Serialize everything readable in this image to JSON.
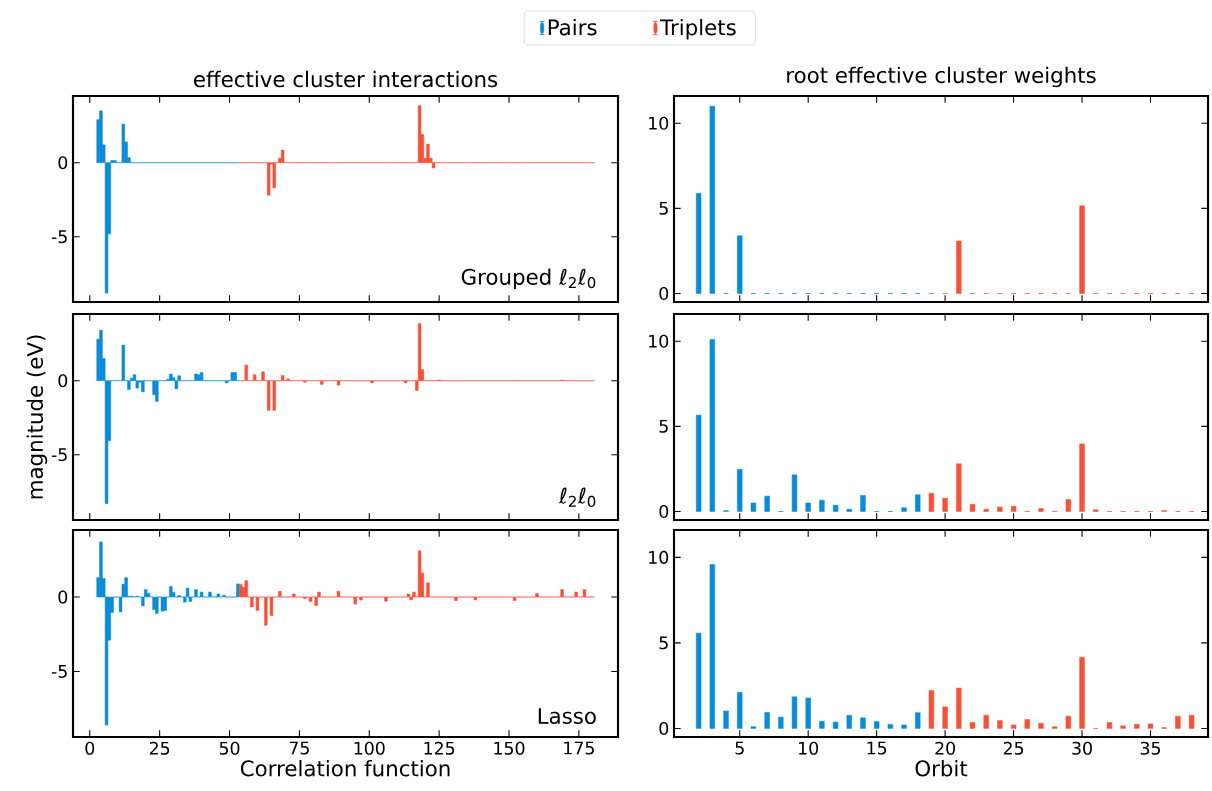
{
  "chart_data": [
    {
      "type": "bar",
      "title": "effective cluster interactions",
      "annotations": [
        "Grouped ℓ$_{2}$ℓ$_{0}$"
      ],
      "xlim": [
        -6,
        189
      ],
      "ylim": [
        -9.4,
        4.5
      ],
      "xticks": [
        0,
        25,
        50,
        75,
        100,
        125,
        150,
        175
      ],
      "yticks": [
        -5,
        0
      ],
      "tick_labels": "y",
      "legend": "top",
      "series": [
        {
          "name": "Pairs",
          "color": "#0a8bd6",
          "x": [
            3,
            4,
            5,
            6,
            7,
            8,
            9,
            10,
            11,
            12,
            13,
            14,
            15,
            16,
            17,
            18,
            19,
            20,
            21,
            22,
            23,
            24,
            25,
            26,
            27,
            28,
            29,
            30,
            31,
            32,
            33,
            34,
            35,
            36,
            37,
            38,
            39,
            40,
            41,
            42,
            43,
            44,
            45,
            46,
            47,
            48,
            49,
            50,
            51,
            52,
            53
          ],
          "values": [
            2.9,
            3.5,
            1.2,
            -8.8,
            -4.8,
            0.15,
            0.15,
            0,
            0,
            2.6,
            1.4,
            0.35,
            0,
            0,
            0,
            0,
            0,
            0,
            0,
            0,
            0,
            0,
            0,
            0,
            0,
            0,
            0,
            0,
            0,
            0,
            0,
            0,
            0,
            0,
            0,
            0,
            0,
            0,
            0,
            0,
            0,
            0,
            0,
            0,
            0,
            0,
            0,
            0,
            0,
            0,
            0
          ]
        },
        {
          "name": "Triplets",
          "color": "#f5523a",
          "x": [
            54,
            55,
            56,
            57,
            58,
            59,
            60,
            61,
            62,
            63,
            64,
            65,
            66,
            67,
            68,
            69,
            70,
            71,
            72,
            73,
            74,
            75,
            76,
            77,
            78,
            79,
            80,
            81,
            82,
            83,
            84,
            85,
            86,
            87,
            88,
            89,
            90,
            91,
            92,
            93,
            94,
            95,
            96,
            97,
            98,
            99,
            100,
            101,
            102,
            103,
            104,
            105,
            106,
            107,
            108,
            109,
            110,
            111,
            112,
            113,
            114,
            115,
            116,
            117,
            118,
            119,
            120,
            121,
            122,
            123,
            124,
            125,
            126,
            127,
            128,
            129,
            130,
            131,
            132,
            133,
            134,
            135,
            136,
            137,
            138,
            139,
            140,
            141,
            142,
            143,
            144,
            145,
            146,
            147,
            148,
            149,
            150,
            151,
            152,
            153,
            154,
            155,
            156,
            157,
            158,
            159,
            160,
            161,
            162,
            163,
            164,
            165,
            166,
            167,
            168,
            169,
            170,
            171,
            172,
            173,
            174,
            175,
            176,
            177,
            178,
            179,
            180
          ],
          "values": [
            0,
            0,
            0,
            0,
            0,
            0,
            0,
            0,
            0,
            0,
            -2.2,
            -0.1,
            -1.7,
            0,
            0.3,
            0.85,
            0,
            0,
            0,
            0,
            0,
            0,
            0,
            0,
            0,
            0,
            0,
            0,
            0,
            0,
            0,
            0,
            0,
            0,
            0,
            0,
            0,
            0,
            0,
            0,
            0,
            0,
            0,
            0,
            0,
            0,
            0,
            0,
            0,
            0,
            0,
            0,
            0,
            0,
            0,
            0,
            0,
            0,
            0,
            0,
            0,
            0,
            0,
            0,
            3.85,
            1.9,
            0.3,
            1.25,
            0.3,
            -0.35,
            0,
            0,
            0,
            0,
            0,
            0,
            0,
            0,
            0,
            0,
            0,
            0,
            0,
            0,
            0,
            0,
            0,
            0,
            0,
            0,
            0,
            0,
            0,
            0,
            0,
            0,
            0,
            0,
            0,
            0,
            0,
            0,
            0,
            0,
            0,
            0,
            0,
            0,
            0,
            0,
            0,
            0,
            0,
            0,
            0,
            0,
            0,
            0,
            0,
            0,
            0,
            0,
            0,
            0,
            0,
            0,
            0
          ]
        }
      ]
    },
    {
      "type": "bar",
      "title": "root effective cluster weights",
      "xlim": [
        0.2,
        39.2
      ],
      "ylim": [
        -0.5,
        11.6
      ],
      "xticks": [
        5,
        10,
        15,
        20,
        25,
        30,
        35
      ],
      "yticks": [
        0,
        5,
        10
      ],
      "tick_labels": "y",
      "series": [
        {
          "color": "#0a8bd6",
          "x": [
            2,
            3,
            4,
            5,
            6,
            7,
            8,
            9,
            10,
            11,
            12,
            13,
            14,
            15,
            16,
            17,
            18
          ],
          "values": [
            5.88,
            11.0,
            0,
            3.39,
            0,
            0,
            0,
            0,
            0,
            0,
            0,
            0,
            0,
            0,
            0,
            0,
            0
          ]
        },
        {
          "color": "#f5523a",
          "x": [
            19,
            20,
            21,
            22,
            23,
            24,
            25,
            26,
            27,
            28,
            29,
            30,
            31,
            32,
            33,
            34,
            35,
            36,
            37,
            38
          ],
          "values": [
            0,
            0,
            3.08,
            0,
            0,
            0,
            0,
            0,
            0,
            0,
            0,
            5.15,
            0,
            0,
            0,
            0,
            0,
            0,
            0,
            0
          ]
        }
      ]
    },
    {
      "type": "bar",
      "ylabel": "magnitude (eV)",
      "annotations": [
        "ℓ$_{2}$ℓ$_{0}$"
      ],
      "xlim": [
        -6,
        189
      ],
      "ylim": [
        -9.4,
        4.5
      ],
      "xticks": [
        0,
        25,
        50,
        75,
        100,
        125,
        150,
        175
      ],
      "yticks": [
        -5,
        0
      ],
      "tick_labels": "y",
      "series": [
        {
          "color": "#0a8bd6",
          "x": [
            3,
            4,
            5,
            6,
            7,
            8,
            9,
            10,
            11,
            12,
            13,
            14,
            15,
            16,
            17,
            18,
            19,
            20,
            21,
            22,
            23,
            24,
            25,
            26,
            27,
            28,
            29,
            30,
            31,
            32,
            33,
            34,
            35,
            36,
            37,
            38,
            39,
            40,
            41,
            42,
            43,
            44,
            45,
            46,
            47,
            48,
            49,
            50,
            51,
            52,
            53
          ],
          "values": [
            2.8,
            3.4,
            1.5,
            -8.3,
            -4.05,
            0,
            0,
            0,
            0,
            2.4,
            0,
            -0.6,
            0.17,
            0.4,
            -0.5,
            -0.1,
            -0.75,
            0,
            0,
            0,
            -0.95,
            -1.4,
            0,
            0,
            0,
            0.1,
            0.45,
            0.2,
            -0.55,
            0.33,
            0,
            0,
            0,
            0,
            0,
            0.45,
            0.4,
            0.55,
            0,
            0,
            0,
            0,
            0,
            0,
            0,
            0,
            -0.15,
            0,
            0.55,
            0.55,
            0
          ]
        },
        {
          "color": "#f5523a",
          "x": [
            54,
            55,
            56,
            57,
            58,
            59,
            60,
            61,
            62,
            63,
            64,
            65,
            66,
            67,
            68,
            69,
            70,
            71,
            72,
            73,
            74,
            75,
            76,
            77,
            78,
            79,
            80,
            81,
            82,
            83,
            84,
            85,
            86,
            87,
            88,
            89,
            90,
            91,
            92,
            93,
            94,
            95,
            96,
            97,
            98,
            99,
            100,
            101,
            102,
            103,
            104,
            105,
            106,
            107,
            108,
            109,
            110,
            111,
            112,
            113,
            114,
            115,
            116,
            117,
            118,
            119,
            120,
            121,
            122,
            123,
            124,
            125,
            126,
            127,
            128,
            129,
            130,
            131,
            132,
            133,
            134,
            135,
            136,
            137,
            138,
            139,
            140,
            141,
            142,
            143,
            144,
            145,
            146,
            147,
            148,
            149,
            150,
            151,
            152,
            153,
            154,
            155,
            156,
            157,
            158,
            159,
            160,
            161,
            162,
            163,
            164,
            165,
            166,
            167,
            168,
            169,
            170,
            171,
            172,
            173,
            174,
            175,
            176,
            177,
            178,
            179,
            180
          ],
          "values": [
            0,
            0,
            1.05,
            0,
            0,
            0.4,
            0,
            0,
            0.6,
            0,
            -2.0,
            0,
            -2.0,
            0,
            0,
            0.35,
            0,
            0.12,
            0,
            0,
            0,
            0,
            0,
            -0.1,
            0,
            0,
            0,
            0,
            0,
            -0.25,
            0,
            0,
            0,
            0,
            0,
            -0.3,
            0,
            0,
            0,
            0,
            0,
            0,
            0,
            0,
            0,
            0,
            0,
            -0.15,
            0,
            0,
            0,
            0,
            0,
            0,
            0,
            0,
            0,
            0,
            0,
            -0.15,
            0,
            0,
            0,
            -0.67,
            3.85,
            0.75,
            0,
            0,
            0,
            0,
            0,
            0.05,
            0,
            0,
            0,
            0,
            0,
            0,
            0,
            0,
            0,
            0,
            0,
            0,
            0,
            0,
            0,
            0,
            0,
            0,
            0,
            0,
            0,
            0,
            0,
            0,
            0,
            0,
            0,
            0,
            0,
            0,
            0,
            0,
            0,
            0,
            0,
            0,
            0,
            0,
            0,
            0,
            0,
            0,
            0,
            0.05,
            0,
            0,
            0,
            0,
            0,
            0,
            0,
            0,
            0,
            0,
            0
          ]
        }
      ]
    },
    {
      "type": "bar",
      "xlim": [
        0.2,
        39.2
      ],
      "ylim": [
        -0.5,
        11.6
      ],
      "xticks": [
        5,
        10,
        15,
        20,
        25,
        30,
        35
      ],
      "yticks": [
        0,
        5,
        10
      ],
      "tick_labels": "y",
      "series": [
        {
          "color": "#0a8bd6",
          "x": [
            2,
            3,
            4,
            5,
            6,
            7,
            8,
            9,
            10,
            11,
            12,
            13,
            14,
            15,
            16,
            17,
            18
          ],
          "values": [
            5.66,
            10.1,
            0.05,
            2.48,
            0.5,
            0.9,
            0,
            2.15,
            0.5,
            0.66,
            0.37,
            0.13,
            0.94,
            0,
            0,
            0.22,
            0.98
          ]
        },
        {
          "color": "#f5523a",
          "x": [
            19,
            20,
            21,
            22,
            23,
            24,
            25,
            26,
            27,
            28,
            29,
            30,
            31,
            32,
            33,
            34,
            35,
            36,
            37,
            38
          ],
          "values": [
            1.07,
            0.78,
            2.8,
            0.42,
            0.13,
            0.26,
            0.3,
            0,
            0.17,
            0,
            0.7,
            3.97,
            0.1,
            0,
            0,
            0,
            0,
            0.05,
            0,
            0
          ]
        }
      ]
    },
    {
      "type": "bar",
      "xlabel": "Correlation function",
      "annotations": [
        "Lasso"
      ],
      "xlim": [
        -6,
        189
      ],
      "ylim": [
        -9.4,
        4.5
      ],
      "xticks": [
        0,
        25,
        50,
        75,
        100,
        125,
        150,
        175
      ],
      "yticks": [
        -5,
        0
      ],
      "series": [
        {
          "color": "#0a8bd6",
          "x": [
            3,
            4,
            5,
            6,
            7,
            8,
            9,
            10,
            11,
            12,
            13,
            14,
            15,
            16,
            17,
            18,
            19,
            20,
            21,
            22,
            23,
            24,
            25,
            26,
            27,
            28,
            29,
            30,
            31,
            32,
            33,
            34,
            35,
            36,
            37,
            38,
            39,
            40,
            41,
            42,
            43,
            44,
            45,
            46,
            47,
            48,
            49,
            50,
            51,
            52,
            53
          ],
          "values": [
            1.3,
            3.7,
            1.24,
            -8.6,
            -2.9,
            -1.05,
            0,
            0,
            -1.0,
            0.86,
            1.3,
            0.05,
            0.05,
            0,
            0.05,
            0,
            -0.6,
            0.5,
            0.25,
            0,
            -0.85,
            -1.1,
            0,
            -0.95,
            -0.9,
            0,
            0.7,
            0.3,
            0,
            0.1,
            0,
            -0.35,
            0.6,
            -0.3,
            0,
            0.5,
            0,
            0.33,
            0,
            0,
            0.33,
            0,
            0,
            0.2,
            0,
            0.12,
            0,
            0,
            0,
            0,
            0.88
          ]
        },
        {
          "color": "#f5523a",
          "x": [
            54,
            55,
            56,
            57,
            58,
            59,
            60,
            61,
            62,
            63,
            64,
            65,
            66,
            67,
            68,
            69,
            70,
            71,
            72,
            73,
            74,
            75,
            76,
            77,
            78,
            79,
            80,
            81,
            82,
            83,
            84,
            85,
            86,
            87,
            88,
            89,
            90,
            91,
            92,
            93,
            94,
            95,
            96,
            97,
            98,
            99,
            100,
            101,
            102,
            103,
            104,
            105,
            106,
            107,
            108,
            109,
            110,
            111,
            112,
            113,
            114,
            115,
            116,
            117,
            118,
            119,
            120,
            121,
            122,
            123,
            124,
            125,
            126,
            127,
            128,
            129,
            130,
            131,
            132,
            133,
            134,
            135,
            136,
            137,
            138,
            139,
            140,
            141,
            142,
            143,
            144,
            145,
            146,
            147,
            148,
            149,
            150,
            151,
            152,
            153,
            154,
            155,
            156,
            157,
            158,
            159,
            160,
            161,
            162,
            163,
            164,
            165,
            166,
            167,
            168,
            169,
            170,
            171,
            172,
            173,
            174,
            175,
            176,
            177,
            178,
            179,
            180
          ],
          "values": [
            0.83,
            0.65,
            1.1,
            0,
            -0.67,
            0,
            -0.9,
            0,
            0,
            -1.9,
            0,
            -1.25,
            0,
            0,
            0.38,
            0,
            0,
            0,
            0,
            0.2,
            0,
            0,
            0,
            -0.1,
            0,
            -0.3,
            0,
            -0.57,
            0.33,
            0,
            0,
            0,
            0,
            0,
            0,
            0.38,
            0,
            0,
            0,
            0,
            0,
            -0.48,
            0,
            -0.2,
            0,
            0,
            0,
            0,
            0,
            0,
            0,
            0,
            -0.28,
            0,
            0,
            0,
            0,
            0,
            0,
            0,
            0.2,
            -0.2,
            0.33,
            0,
            3.1,
            1.6,
            0,
            0.95,
            0,
            0,
            0,
            0,
            0,
            0,
            0,
            0,
            0,
            -0.24,
            0,
            0,
            0,
            0,
            0,
            0,
            -0.2,
            0,
            0,
            0,
            0,
            0,
            0,
            0,
            0,
            0,
            0,
            0,
            0,
            0,
            -0.24,
            0,
            0,
            0,
            0,
            0,
            0,
            0,
            0.24,
            0,
            0,
            0,
            0,
            0,
            0,
            0,
            0,
            0.5,
            0,
            0,
            0,
            0,
            0.33,
            0,
            0,
            0.5,
            0,
            0,
            0
          ]
        }
      ]
    },
    {
      "type": "bar",
      "xlabel": "Orbit",
      "xlim": [
        0.2,
        39.2
      ],
      "ylim": [
        -0.5,
        11.6
      ],
      "xticks": [
        5,
        10,
        15,
        20,
        25,
        30,
        35
      ],
      "yticks": [
        0,
        5,
        10
      ],
      "series": [
        {
          "color": "#0a8bd6",
          "x": [
            2,
            3,
            4,
            5,
            6,
            7,
            8,
            9,
            10,
            11,
            12,
            13,
            14,
            15,
            16,
            17,
            18
          ],
          "values": [
            5.57,
            9.58,
            1.02,
            2.11,
            0.1,
            0.93,
            0.66,
            1.85,
            1.78,
            0.42,
            0.37,
            0.77,
            0.62,
            0.4,
            0.24,
            0.2,
            0.92
          ]
        },
        {
          "color": "#f5523a",
          "x": [
            19,
            20,
            21,
            22,
            23,
            24,
            25,
            26,
            27,
            28,
            29,
            30,
            31,
            32,
            33,
            34,
            35,
            36,
            37,
            38
          ],
          "values": [
            2.22,
            1.26,
            2.36,
            0.35,
            0.77,
            0.46,
            0.2,
            0.52,
            0.3,
            0.1,
            0.71,
            4.16,
            0,
            0.35,
            0.15,
            0.24,
            0.26,
            0.05,
            0.71,
            0.77
          ]
        }
      ]
    }
  ]
}
